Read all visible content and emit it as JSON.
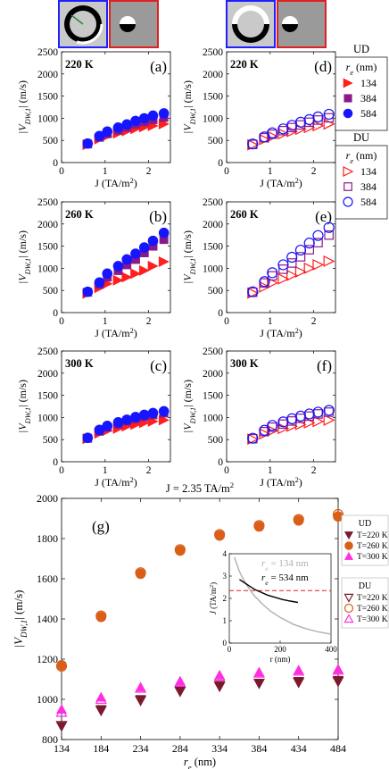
{
  "colors": {
    "red": "#ff1f1f",
    "blue": "#1515ff",
    "purple": "#8b1a89",
    "dark_red": "#7b1a2e",
    "orange": "#d95f19",
    "magenta": "#ff2fe0",
    "inset_gray": "#b0b0b0",
    "inset_black": "#000000",
    "inset_dash": "#e02020"
  },
  "legends": {
    "top_ud": {
      "title": "UD",
      "header": "r_e (nm)",
      "entries": [
        {
          "label": "134",
          "marker": "triangle-right",
          "filled": true,
          "color": "#ff1f1f"
        },
        {
          "label": "384",
          "marker": "square",
          "filled": true,
          "color": "#8b1a89"
        },
        {
          "label": "584",
          "marker": "circle",
          "filled": true,
          "color": "#1515ff"
        }
      ]
    },
    "top_du": {
      "title": "DU",
      "header": "r_e (nm)",
      "entries": [
        {
          "label": "134",
          "marker": "triangle-right",
          "filled": false,
          "color": "#ff1f1f"
        },
        {
          "label": "384",
          "marker": "square",
          "filled": false,
          "color": "#8b1a89"
        },
        {
          "label": "584",
          "marker": "circle",
          "filled": false,
          "color": "#1515ff"
        }
      ]
    },
    "g_ud": {
      "title": "UD",
      "entries": [
        {
          "label": "T=220 K",
          "marker": "triangle-down",
          "filled": true,
          "color": "#7b1a2e"
        },
        {
          "label": "T=260 K",
          "marker": "circle",
          "filled": true,
          "color": "#d95f19"
        },
        {
          "label": "T=300 K",
          "marker": "triangle-up",
          "filled": true,
          "color": "#ff2fe0"
        }
      ]
    },
    "g_du": {
      "title": "DU",
      "entries": [
        {
          "label": "T=220 K",
          "marker": "triangle-down",
          "filled": false,
          "color": "#7b1a2e"
        },
        {
          "label": "T=260 K",
          "marker": "circle",
          "filled": false,
          "color": "#d95f19"
        },
        {
          "label": "T=300 K",
          "marker": "triangle-up",
          "filled": false,
          "color": "#ff2fe0"
        }
      ]
    }
  },
  "chart_data": [
    {
      "id": "a",
      "type": "scatter",
      "panel_label": "(a)",
      "temp_label": "220 K",
      "xlabel": "J (TA/m²)",
      "ylabel": "|V_DW,1| (m/s)",
      "xlim": [
        0,
        2.5
      ],
      "ylim": [
        0,
        2500
      ],
      "xticks": [
        0,
        1,
        2
      ],
      "yticks": [
        0,
        500,
        1000,
        1500,
        2000,
        2500
      ],
      "x": [
        0.6,
        0.87,
        1.05,
        1.3,
        1.5,
        1.7,
        1.9,
        2.1,
        2.35
      ],
      "series": [
        {
          "label": "134",
          "marker": "triangle-right",
          "filled": true,
          "color": "#ff1f1f",
          "values": [
            400,
            530,
            600,
            660,
            710,
            760,
            800,
            830,
            870
          ]
        },
        {
          "label": "384",
          "marker": "square",
          "filled": true,
          "color": "#8b1a89",
          "values": [
            420,
            570,
            650,
            730,
            800,
            870,
            920,
            970,
            1020
          ]
        },
        {
          "label": "584",
          "marker": "circle",
          "filled": true,
          "color": "#1515ff",
          "values": [
            430,
            600,
            700,
            790,
            860,
            940,
            1000,
            1060,
            1110
          ]
        }
      ]
    },
    {
      "id": "b",
      "type": "scatter",
      "panel_label": "(b)",
      "temp_label": "260 K",
      "xlabel": "J (TA/m²)",
      "ylabel": "|V_DW,1| (m/s)",
      "xlim": [
        0,
        2.5
      ],
      "ylim": [
        0,
        2500
      ],
      "xticks": [
        0,
        1,
        2
      ],
      "yticks": [
        0,
        500,
        1000,
        1500,
        2000,
        2500
      ],
      "x": [
        0.6,
        0.87,
        1.05,
        1.3,
        1.5,
        1.7,
        1.9,
        2.1,
        2.35
      ],
      "series": [
        {
          "label": "134",
          "marker": "triangle-right",
          "filled": true,
          "color": "#ff1f1f",
          "values": [
            430,
            560,
            650,
            730,
            800,
            880,
            950,
            1050,
            1150
          ]
        },
        {
          "label": "384",
          "marker": "square",
          "filled": true,
          "color": "#8b1a89",
          "values": [
            460,
            640,
            800,
            950,
            1080,
            1200,
            1350,
            1500,
            1650
          ]
        },
        {
          "label": "584",
          "marker": "circle",
          "filled": true,
          "color": "#1515ff",
          "values": [
            470,
            680,
            880,
            1050,
            1200,
            1330,
            1470,
            1620,
            1800
          ]
        }
      ]
    },
    {
      "id": "c",
      "type": "scatter",
      "panel_label": "(c)",
      "temp_label": "300 K",
      "xlabel": "J (TA/m²)",
      "ylabel": "|V_DW,1| (m/s)",
      "xlim": [
        0,
        2.5
      ],
      "ylim": [
        0,
        2500
      ],
      "xticks": [
        0,
        1,
        2
      ],
      "yticks": [
        0,
        500,
        1000,
        1500,
        2000,
        2500
      ],
      "x": [
        0.6,
        0.87,
        1.05,
        1.3,
        1.5,
        1.7,
        1.9,
        2.1,
        2.35
      ],
      "series": [
        {
          "label": "134",
          "marker": "triangle-right",
          "filled": true,
          "color": "#ff1f1f",
          "values": [
            520,
            640,
            700,
            750,
            800,
            840,
            880,
            910,
            940
          ]
        },
        {
          "label": "384",
          "marker": "square",
          "filled": true,
          "color": "#8b1a89",
          "values": [
            530,
            690,
            780,
            850,
            920,
            970,
            1020,
            1060,
            1100
          ]
        },
        {
          "label": "584",
          "marker": "circle",
          "filled": true,
          "color": "#1515ff",
          "values": [
            540,
            720,
            810,
            890,
            950,
            1010,
            1060,
            1100,
            1140
          ]
        }
      ]
    },
    {
      "id": "d",
      "type": "scatter",
      "panel_label": "(d)",
      "temp_label": "220 K",
      "xlabel": "J (TA/m²)",
      "ylabel": "|V_DW,1| (m/s)",
      "xlim": [
        0,
        2.5
      ],
      "ylim": [
        0,
        2500
      ],
      "xticks": [
        0,
        1,
        2
      ],
      "yticks": [
        0,
        500,
        1000,
        1500,
        2000,
        2500
      ],
      "x": [
        0.6,
        0.87,
        1.05,
        1.3,
        1.5,
        1.7,
        1.9,
        2.1,
        2.35
      ],
      "series": [
        {
          "label": "134",
          "marker": "triangle-right",
          "filled": false,
          "color": "#ff1f1f",
          "values": [
            400,
            520,
            590,
            650,
            700,
            750,
            790,
            830,
            870
          ]
        },
        {
          "label": "384",
          "marker": "square",
          "filled": false,
          "color": "#8b1a89",
          "values": [
            410,
            560,
            640,
            720,
            790,
            850,
            910,
            960,
            1010
          ]
        },
        {
          "label": "584",
          "marker": "circle",
          "filled": false,
          "color": "#1515ff",
          "values": [
            420,
            580,
            670,
            760,
            840,
            910,
            970,
            1030,
            1090
          ]
        }
      ]
    },
    {
      "id": "e",
      "type": "scatter",
      "panel_label": "(e)",
      "temp_label": "260 K",
      "xlabel": "J (TA/m²)",
      "ylabel": "|V_DW,1| (m/s)",
      "xlim": [
        0,
        2.5
      ],
      "ylim": [
        0,
        2500
      ],
      "xticks": [
        0,
        1,
        2
      ],
      "yticks": [
        0,
        500,
        1000,
        1500,
        2000,
        2500
      ],
      "x": [
        0.6,
        0.87,
        1.05,
        1.3,
        1.5,
        1.7,
        1.9,
        2.1,
        2.35
      ],
      "series": [
        {
          "label": "134",
          "marker": "triangle-right",
          "filled": false,
          "color": "#ff1f1f",
          "values": [
            440,
            580,
            670,
            760,
            840,
            920,
            1000,
            1080,
            1160
          ]
        },
        {
          "label": "384",
          "marker": "square",
          "filled": false,
          "color": "#8b1a89",
          "values": [
            460,
            670,
            830,
            980,
            1120,
            1260,
            1420,
            1580,
            1750
          ]
        },
        {
          "label": "584",
          "marker": "circle",
          "filled": false,
          "color": "#1515ff",
          "values": [
            470,
            700,
            900,
            1080,
            1250,
            1410,
            1570,
            1740,
            1920
          ]
        }
      ]
    },
    {
      "id": "f",
      "type": "scatter",
      "panel_label": "(f)",
      "temp_label": "300 K",
      "xlabel": "J (TA/m²)",
      "ylabel": "|V_DW,1| (m/s)",
      "xlim": [
        0,
        2.5
      ],
      "ylim": [
        0,
        2500
      ],
      "xticks": [
        0,
        1,
        2
      ],
      "yticks": [
        0,
        500,
        1000,
        1500,
        2000,
        2500
      ],
      "x": [
        0.6,
        0.87,
        1.05,
        1.3,
        1.5,
        1.7,
        1.9,
        2.1,
        2.35
      ],
      "series": [
        {
          "label": "134",
          "marker": "triangle-right",
          "filled": false,
          "color": "#ff1f1f",
          "values": [
            510,
            630,
            700,
            750,
            800,
            840,
            880,
            910,
            940
          ]
        },
        {
          "label": "384",
          "marker": "square",
          "filled": false,
          "color": "#8b1a89",
          "values": [
            520,
            680,
            780,
            850,
            920,
            980,
            1030,
            1080,
            1120
          ]
        },
        {
          "label": "584",
          "marker": "circle",
          "filled": false,
          "color": "#1515ff",
          "values": [
            530,
            710,
            820,
            900,
            970,
            1030,
            1080,
            1120,
            1160
          ]
        }
      ]
    },
    {
      "id": "g",
      "type": "scatter",
      "panel_label": "(g)",
      "title": "J = 2.35 TA/m²",
      "xlabel": "r_e (nm)",
      "ylabel": "|V_DW,1| (m/s)",
      "xlim": [
        134,
        484
      ],
      "ylim": [
        800,
        2000
      ],
      "xticks": [
        134,
        184,
        234,
        284,
        334,
        384,
        434,
        484
      ],
      "yticks": [
        800,
        1000,
        1200,
        1400,
        1600,
        1800,
        2000
      ],
      "x": [
        134,
        184,
        234,
        284,
        334,
        384,
        434,
        484
      ],
      "series": [
        {
          "label": "UD T=220 K",
          "marker": "triangle-down",
          "filled": true,
          "color": "#7b1a2e",
          "values": [
            865,
            950,
            1000,
            1045,
            1070,
            1080,
            1090,
            1095
          ]
        },
        {
          "label": "UD T=260 K",
          "marker": "circle",
          "filled": true,
          "color": "#d95f19",
          "values": [
            1170,
            1410,
            1625,
            1740,
            1815,
            1860,
            1890,
            1910
          ]
        },
        {
          "label": "UD T=300 K",
          "marker": "triangle-up",
          "filled": true,
          "color": "#ff2fe0",
          "values": [
            950,
            1010,
            1060,
            1090,
            1120,
            1135,
            1145,
            1150
          ]
        },
        {
          "label": "DU T=220 K",
          "marker": "triangle-down",
          "filled": false,
          "color": "#7b1a2e",
          "values": [
            870,
            945,
            995,
            1040,
            1065,
            1080,
            1085,
            1090
          ]
        },
        {
          "label": "DU T=260 K",
          "marker": "circle",
          "filled": false,
          "color": "#d95f19",
          "values": [
            1165,
            1415,
            1630,
            1745,
            1820,
            1865,
            1895,
            1920
          ]
        },
        {
          "label": "DU T=300 K",
          "marker": "triangle-up",
          "filled": false,
          "color": "#ff2fe0",
          "values": [
            935,
            1000,
            1055,
            1085,
            1115,
            1130,
            1140,
            1145
          ]
        }
      ],
      "inset": {
        "xlabel": "r (nm)",
        "ylabel": "J (TA/m²)",
        "xlim": [
          0,
          400
        ],
        "ylim": [
          0,
          4
        ],
        "xticks": [
          0,
          200,
          400
        ],
        "yticks": [
          0,
          1,
          2,
          3,
          4
        ],
        "legend": [
          {
            "label": "r_e = 134 nm",
            "color": "#b0b0b0"
          },
          {
            "label": "r_e = 534 nm",
            "color": "#000000"
          }
        ],
        "dash_level": 2.35,
        "curves": [
          {
            "name": "gray",
            "color": "#b0b0b0",
            "x": [
              20,
              40,
              60,
              80,
              100,
              130,
              160,
              200,
              250,
              300,
              350,
              400
            ],
            "y": [
              3.85,
              3.2,
              2.75,
              2.4,
              2.1,
              1.75,
              1.45,
              1.15,
              0.85,
              0.65,
              0.5,
              0.4
            ]
          },
          {
            "name": "black",
            "color": "#000000",
            "x": [
              40,
              60,
              80,
              100,
              120,
              150,
              180,
              210,
              240,
              270
            ],
            "y": [
              2.85,
              2.7,
              2.55,
              2.4,
              2.3,
              2.15,
              2.05,
              1.95,
              1.88,
              1.82
            ]
          }
        ]
      }
    }
  ]
}
